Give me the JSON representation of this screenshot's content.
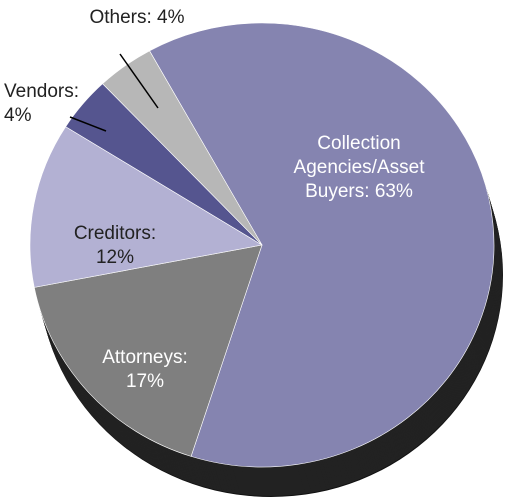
{
  "chart_data": {
    "type": "pie",
    "labels": [
      "Collection Agencies/Asset Buyers: 63%",
      "Attorneys: 17%",
      "Creditors: 12%",
      "Vendors: 4%",
      "Others: 4%"
    ],
    "values": [
      63,
      17,
      12,
      4,
      4
    ],
    "colors": [
      "#8584b0",
      "#7f7f7f",
      "#b3b1d3",
      "#55558f",
      "#b7b7b7"
    ],
    "start_angle": -29
  }
}
